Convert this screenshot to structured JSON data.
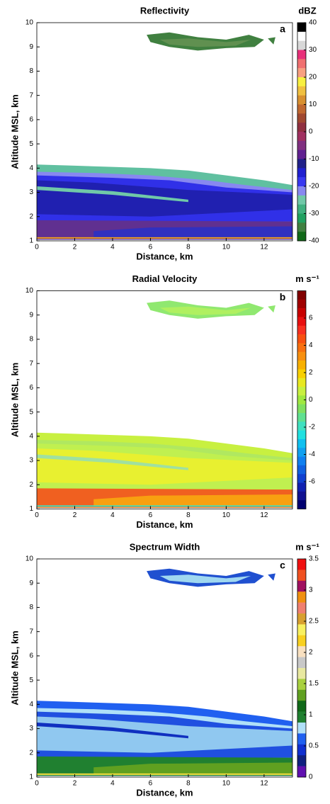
{
  "chart_data": [
    {
      "type": "heatmap",
      "title": "Reflectivity",
      "panel_label": "a",
      "xlabel": "Distance, km",
      "ylabel": "Altitude MSL, km",
      "xlim": [
        0,
        13.5
      ],
      "xticks": [
        0,
        2,
        4,
        6,
        8,
        10,
        12
      ],
      "ylim": [
        1,
        10
      ],
      "yticks": [
        1,
        2,
        3,
        4,
        5,
        6,
        7,
        8,
        9,
        10
      ],
      "colorbar": {
        "label": "dBZ",
        "lim": [
          -40,
          40
        ],
        "ticks": [
          -40,
          -30,
          -20,
          -10,
          0,
          10,
          20,
          30,
          40
        ],
        "colors": [
          "#000000",
          "#ffffff",
          "#d8d8d8",
          "#e8307a",
          "#f07070",
          "#f8a080",
          "#f8f040",
          "#f0c040",
          "#d89030",
          "#c06830",
          "#a04830",
          "#903040",
          "#a03060",
          "#803080",
          "#602090",
          "#202088",
          "#2020d0",
          "#3838f0",
          "#8888f0",
          "#70c8a8",
          "#40b080",
          "#20a060",
          "#408040",
          "#106818"
        ]
      }
    },
    {
      "type": "heatmap",
      "title": "Radial Velocity",
      "panel_label": "b",
      "xlabel": "Distance, km",
      "ylabel": "Altitude MSL, km",
      "xlim": [
        0,
        13.5
      ],
      "xticks": [
        0,
        2,
        4,
        6,
        8,
        10,
        12
      ],
      "ylim": [
        1,
        10
      ],
      "yticks": [
        1,
        2,
        3,
        4,
        5,
        6,
        7,
        8,
        9,
        10
      ],
      "colorbar": {
        "label": "m s⁻¹",
        "lim": [
          -8,
          8
        ],
        "ticks": [
          -6,
          -4,
          -2,
          0,
          2,
          4,
          6
        ],
        "colors": [
          "#800000",
          "#a00000",
          "#c80000",
          "#e81010",
          "#f83020",
          "#f85010",
          "#f87010",
          "#f89010",
          "#f8b000",
          "#f8d000",
          "#e8e820",
          "#c8f040",
          "#a0e840",
          "#80e060",
          "#60e090",
          "#40e0c0",
          "#20e0e0",
          "#10c0f0",
          "#10a0f0",
          "#1080f0",
          "#1060e0",
          "#1040d0",
          "#1020b0",
          "#101090",
          "#000070"
        ]
      }
    },
    {
      "type": "heatmap",
      "title": "Spectrum Width",
      "panel_label": "c",
      "xlabel": "Distance, km",
      "ylabel": "Altitude MSL, km",
      "xlim": [
        0,
        13.5
      ],
      "xticks": [
        0,
        2,
        4,
        6,
        8,
        10,
        12
      ],
      "ylim": [
        1,
        10
      ],
      "yticks": [
        1,
        2,
        3,
        4,
        5,
        6,
        7,
        8,
        9,
        10
      ],
      "colorbar": {
        "label": "m s⁻¹",
        "lim": [
          0,
          3.5
        ],
        "ticks": [
          0,
          0.5,
          1,
          1.5,
          2,
          2.5,
          3,
          3.5
        ],
        "colors": [
          "#f01010",
          "#f05020",
          "#a01060",
          "#f09010",
          "#f08070",
          "#d8a030",
          "#f8f060",
          "#f8d020",
          "#f8e0c0",
          "#c8c8c8",
          "#e8e8a0",
          "#a8d040",
          "#60a020",
          "#106818",
          "#208030",
          "#b0e0f8",
          "#2060f0",
          "#1030d0",
          "#102080",
          "#6010b0"
        ]
      }
    }
  ]
}
